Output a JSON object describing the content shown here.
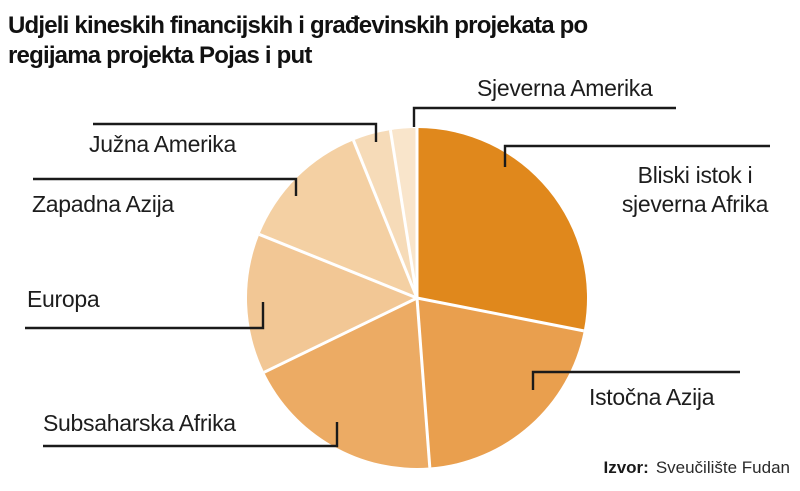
{
  "title": {
    "lines": [
      "Udjeli kineskih financijskih i građevinskih projekata po",
      "regijama projekta Pojas i put"
    ]
  },
  "source": {
    "prefix": "Izvor:",
    "text": "Sveučilište Fudan"
  },
  "chart_data": {
    "type": "pie",
    "title": "Udjeli kineskih financijskih i građevinskih projekata po regijama projekta Pojas i put",
    "source": "Izvor: Sveučilište Fudan",
    "start_angle_deg": 0,
    "direction": "clockwise",
    "values_shown_on_chart": false,
    "values_estimated_from_angles_pct": true,
    "separator_color": "#ffffff",
    "leader_line_color": "#1a1a1a",
    "slices": [
      {
        "label": "Bliski istok i sjeverna Afrika",
        "value": 28.1,
        "color": "#E0881C"
      },
      {
        "label": "Istočna Azija",
        "value": 20.7,
        "color": "#E99F4E"
      },
      {
        "label": "Subsaharska Afrika",
        "value": 19.0,
        "color": "#ECAB64"
      },
      {
        "label": "Europa",
        "value": 13.3,
        "color": "#F2C795"
      },
      {
        "label": "Zapadna Azija",
        "value": 12.8,
        "color": "#F4D0A3"
      },
      {
        "label": "Južna Amerika",
        "value": 3.6,
        "color": "#F6DBB8"
      },
      {
        "label": "Sjeverna Amerika",
        "value": 2.5,
        "color": "#F9E5CB"
      }
    ]
  }
}
